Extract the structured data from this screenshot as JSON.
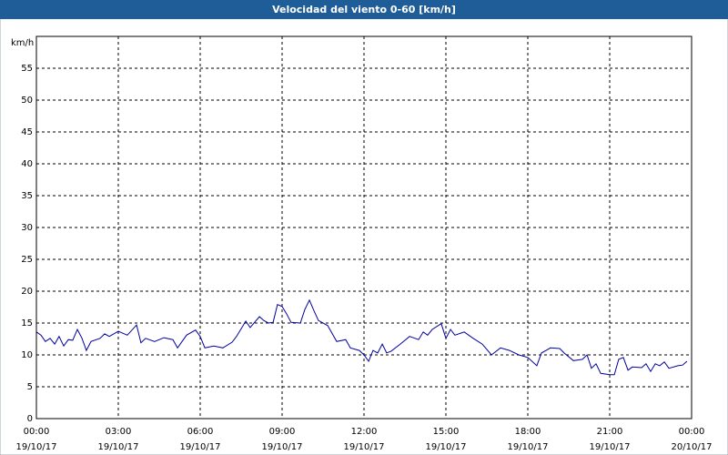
{
  "chart_data": {
    "type": "line",
    "title": "Velocidad del viento 0-60 [km/h]",
    "y_label": "km/h",
    "xlim": [
      0,
      24
    ],
    "ylim": [
      0,
      60
    ],
    "xticks": [
      {
        "value": 0,
        "label": "00:00"
      },
      {
        "value": 3,
        "label": "03:00"
      },
      {
        "value": 6,
        "label": "06:00"
      },
      {
        "value": 9,
        "label": "09:00"
      },
      {
        "value": 12,
        "label": "12:00"
      },
      {
        "value": 15,
        "label": "15:00"
      },
      {
        "value": 18,
        "label": "18:00"
      },
      {
        "value": 21,
        "label": "21:00"
      },
      {
        "value": 24,
        "label": "00:00"
      }
    ],
    "xtick_dates": [
      "19/10/17",
      "19/10/17",
      "19/10/17",
      "19/10/17",
      "19/10/17",
      "19/10/17",
      "19/10/17",
      "19/10/17",
      "20/10/17"
    ],
    "yticks": [
      0,
      5,
      10,
      15,
      20,
      25,
      30,
      35,
      40,
      45,
      50,
      55
    ],
    "grid": true,
    "x": [
      0,
      0.17,
      0.33,
      0.5,
      0.67,
      0.83,
      1,
      1.17,
      1.33,
      1.5,
      1.67,
      1.83,
      2,
      2.33,
      2.5,
      2.67,
      3,
      3.33,
      3.67,
      3.83,
      4,
      4.33,
      4.67,
      5,
      5.17,
      5.5,
      5.83,
      6,
      6.17,
      6.5,
      6.83,
      7.17,
      7.33,
      7.67,
      7.83,
      8.17,
      8.33,
      8.5,
      8.67,
      8.83,
      9,
      9.17,
      9.33,
      9.67,
      9.83,
      10,
      10.17,
      10.33,
      10.67,
      11,
      11.33,
      11.5,
      11.83,
      12,
      12.17,
      12.33,
      12.5,
      12.67,
      12.83,
      13,
      13.33,
      13.67,
      14,
      14.17,
      14.33,
      14.5,
      14.83,
      15,
      15.17,
      15.33,
      15.67,
      16,
      16.33,
      16.67,
      17,
      17.33,
      17.67,
      18,
      18.33,
      18.5,
      18.67,
      18.83,
      19.17,
      19.33,
      19.67,
      20,
      20.17,
      20.33,
      20.5,
      20.67,
      21,
      21.17,
      21.33,
      21.5,
      21.67,
      21.83,
      22.17,
      22.33,
      22.5,
      22.67,
      22.83,
      23,
      23.17,
      23.5,
      23.67,
      23.83
    ],
    "series": [
      {
        "name": "Velocidad del viento",
        "color": "#0000a0",
        "values": [
          13.6,
          13.1,
          12.1,
          12.6,
          11.7,
          12.9,
          11.4,
          12.4,
          12.3,
          14,
          12.6,
          10.7,
          12.1,
          12.6,
          13.3,
          12.9,
          13.7,
          13.1,
          14.7,
          11.9,
          12.6,
          12.1,
          12.7,
          12.4,
          11.1,
          13.1,
          13.9,
          12.9,
          11.1,
          11.4,
          11.1,
          12,
          12.9,
          15.3,
          14.3,
          16,
          15.4,
          15,
          15.1,
          17.9,
          17.6,
          16.4,
          15.1,
          15,
          17.1,
          18.6,
          16.9,
          15.4,
          14.6,
          12.1,
          12.4,
          11.1,
          10.7,
          10,
          9,
          10.7,
          10.3,
          11.7,
          10.3,
          10.6,
          11.7,
          12.9,
          12.4,
          13.6,
          13.1,
          14,
          14.9,
          12.6,
          14,
          13.1,
          13.6,
          12.6,
          11.7,
          10,
          11.1,
          10.7,
          10,
          9.6,
          8.3,
          10.3,
          10.7,
          11.1,
          11,
          10.3,
          9.1,
          9.3,
          10,
          7.9,
          8.6,
          7.1,
          6.9,
          6.9,
          9.3,
          9.6,
          7.6,
          8.1,
          8,
          8.6,
          7.4,
          8.6,
          8.3,
          8.9,
          7.9,
          8.3,
          8.4,
          9
        ]
      }
    ]
  }
}
